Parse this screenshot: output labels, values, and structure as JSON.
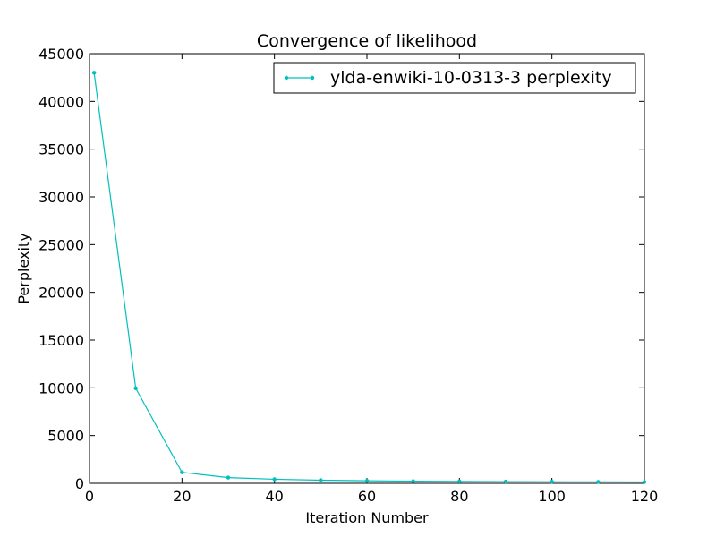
{
  "chart_data": {
    "type": "line",
    "title": "Convergence of likelihood",
    "xlabel": "Iteration Number",
    "ylabel": "Perplexity",
    "xlim": [
      0,
      120
    ],
    "ylim": [
      0,
      45000
    ],
    "xticks": [
      0,
      20,
      40,
      60,
      80,
      100,
      120
    ],
    "yticks": [
      0,
      5000,
      10000,
      15000,
      20000,
      25000,
      30000,
      35000,
      40000,
      45000
    ],
    "grid": false,
    "legend_position": "top-right",
    "series": [
      {
        "name": "ylda-enwiki-10-0313-3 perplexity",
        "color": "#00bfbf",
        "marker": "dot",
        "x": [
          1,
          10,
          20,
          30,
          40,
          50,
          60,
          70,
          80,
          90,
          100,
          110,
          120
        ],
        "y": [
          43000,
          9950,
          1150,
          600,
          430,
          330,
          270,
          230,
          200,
          180,
          165,
          150,
          140
        ]
      }
    ]
  }
}
